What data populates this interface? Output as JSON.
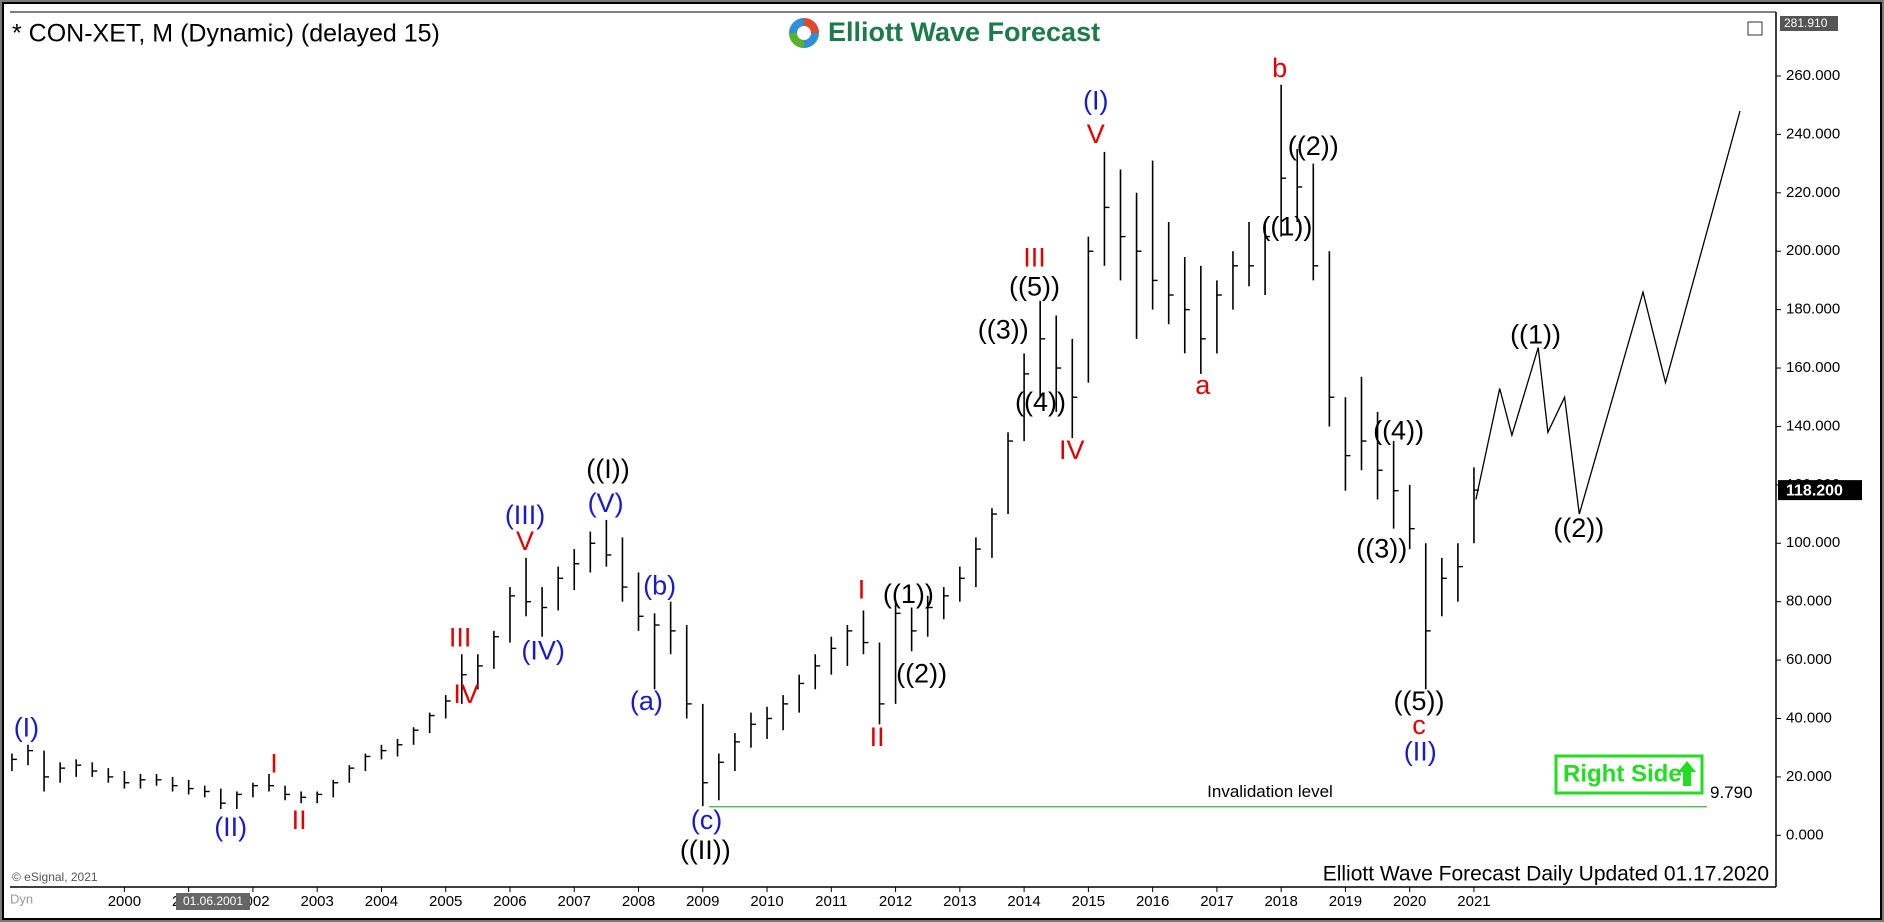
{
  "chart_data": {
    "type": "ohlc",
    "title": "* CON-XET, M (Dynamic) (delayed 15)",
    "logo": "Elliott Wave Forecast",
    "footer": "Elliott Wave Forecast Daily Updated 01.17.2020",
    "copyright": "© eSignal, 2021",
    "corner_label": "Dyn",
    "cursor_label": "01.06.2001",
    "badge": "Right Side",
    "xlim": [
      1998.22,
      2025.7
    ],
    "xticks": [
      2000,
      2001,
      2002,
      2003,
      2004,
      2005,
      2006,
      2007,
      2008,
      2009,
      2010,
      2011,
      2012,
      2013,
      2014,
      2015,
      2016,
      2017,
      2018,
      2019,
      2020,
      2021
    ],
    "ylim": [
      -17.7,
      {
        "value": 281.91,
        "label": "281.910"
      }
    ],
    "yticks": [
      {
        "value": 0,
        "label": "0.000"
      },
      {
        "value": 20,
        "label": "20.000"
      },
      {
        "value": 40,
        "label": "40.000"
      },
      {
        "value": 60,
        "label": "60.000"
      },
      {
        "value": 80,
        "label": "80.000"
      },
      {
        "value": 100,
        "label": "100.000"
      },
      {
        "value": 120,
        "label": "120.000"
      },
      {
        "value": 140,
        "label": "140.000"
      },
      {
        "value": 160,
        "label": "160.000"
      },
      {
        "value": 180,
        "label": "180.000"
      },
      {
        "value": 200,
        "label": "200.000"
      },
      {
        "value": 220,
        "label": "220.000"
      },
      {
        "value": 240,
        "label": "240.000"
      },
      {
        "value": 260,
        "label": "260.000"
      }
    ],
    "bar_color": "#000000",
    "bars": {
      "x": [
        1998.25,
        1998.5,
        1998.75,
        1999.0,
        1999.25,
        1999.5,
        1999.75,
        2000.0,
        2000.25,
        2000.5,
        2000.75,
        2001.0,
        2001.25,
        2001.5,
        2001.75,
        2002.0,
        2002.25,
        2002.5,
        2002.75,
        2003.0,
        2003.25,
        2003.5,
        2003.75,
        2004.0,
        2004.25,
        2004.5,
        2004.75,
        2005.0,
        2005.25,
        2005.5,
        2005.75,
        2006.0,
        2006.25,
        2006.5,
        2006.75,
        2007.0,
        2007.25,
        2007.5,
        2007.75,
        2008.0,
        2008.25,
        2008.5,
        2008.75,
        2009.0,
        2009.25,
        2009.5,
        2009.75,
        2010.0,
        2010.25,
        2010.5,
        2010.75,
        2011.0,
        2011.25,
        2011.5,
        2011.75,
        2012.0,
        2012.25,
        2012.5,
        2012.75,
        2013.0,
        2013.25,
        2013.5,
        2013.75,
        2014.0,
        2014.25,
        2014.5,
        2014.75,
        2015.0,
        2015.25,
        2015.5,
        2015.75,
        2016.0,
        2016.25,
        2016.5,
        2016.75,
        2017.0,
        2017.25,
        2017.5,
        2017.75,
        2018.0,
        2018.25,
        2018.5,
        2018.75,
        2019.0,
        2019.25,
        2019.5,
        2019.75,
        2020.0,
        2020.25,
        2020.5,
        2020.75,
        2021.0
      ],
      "high": [
        28,
        31,
        29,
        25,
        26,
        25,
        23,
        22,
        21,
        21,
        20,
        19,
        17,
        16,
        15,
        18,
        21,
        17,
        15,
        15,
        19,
        24,
        28,
        31,
        33,
        37,
        42,
        48,
        62,
        62,
        70,
        85,
        95,
        85,
        92,
        98,
        104,
        108,
        102,
        90,
        76,
        80,
        72,
        45,
        28,
        35,
        42,
        44,
        48,
        55,
        62,
        68,
        72,
        77,
        66,
        80,
        78,
        82,
        85,
        92,
        102,
        112,
        138,
        165,
        183,
        178,
        170,
        205,
        234,
        228,
        220,
        231,
        210,
        198,
        195,
        190,
        200,
        210,
        210,
        257,
        235,
        230,
        200,
        150,
        157,
        145,
        135,
        120,
        100,
        95,
        100,
        126
      ],
      "low": [
        22,
        24,
        15,
        18,
        20,
        20,
        18,
        16,
        16,
        17,
        15,
        14,
        13,
        9,
        9,
        13,
        15,
        12,
        11,
        11,
        13,
        18,
        22,
        26,
        27,
        31,
        35,
        40,
        45,
        50,
        57,
        66,
        75,
        68,
        77,
        84,
        90,
        92,
        80,
        70,
        50,
        62,
        40,
        10,
        12,
        22,
        30,
        33,
        36,
        42,
        50,
        55,
        58,
        62,
        38,
        45,
        63,
        68,
        74,
        80,
        85,
        95,
        110,
        135,
        150,
        145,
        136,
        155,
        195,
        190,
        170,
        180,
        175,
        165,
        158,
        165,
        180,
        188,
        185,
        205,
        210,
        190,
        140,
        118,
        125,
        115,
        105,
        98,
        50,
        75,
        80,
        100
      ],
      "close": [
        26,
        29,
        20,
        23,
        24,
        22,
        20,
        18,
        19,
        19,
        17,
        16,
        15,
        11,
        14,
        17,
        17,
        14,
        13,
        14,
        18,
        23,
        27,
        29,
        31,
        36,
        41,
        46,
        55,
        58,
        68,
        82,
        80,
        78,
        88,
        93,
        100,
        96,
        85,
        75,
        72,
        70,
        45,
        18,
        25,
        32,
        38,
        40,
        45,
        52,
        58,
        64,
        70,
        66,
        45,
        76,
        70,
        78,
        82,
        88,
        98,
        110,
        135,
        158,
        170,
        160,
        150,
        200,
        215,
        205,
        200,
        190,
        185,
        180,
        170,
        185,
        195,
        195,
        205,
        225,
        222,
        195,
        150,
        130,
        135,
        125,
        118,
        105,
        70,
        88,
        92,
        118.2
      ]
    },
    "last_price": {
      "value": 118.2,
      "label": "118.200"
    },
    "projection": {
      "color": "#000000",
      "x": [
        2021.03,
        2021.4,
        2021.59,
        2022.0,
        2022.15,
        2022.41,
        2022.64,
        2023.63,
        2023.98,
        2025.14
      ],
      "values": [
        115,
        153,
        137,
        167,
        138,
        150,
        110,
        186,
        155,
        248
      ]
    },
    "invalidation": {
      "label": "Invalidation level",
      "value": 9.79,
      "value_label": "9.790",
      "color": "#3cb043"
    },
    "annotations": [
      {
        "text": "(I)",
        "color": "#1a1acc"
      },
      {
        "text": "(II)",
        "color": "#1a1acc"
      },
      {
        "text": "I",
        "color": "#e00000"
      },
      {
        "text": "II",
        "color": "#e00000"
      },
      {
        "text": "III",
        "color": "#e00000"
      },
      {
        "text": "IV",
        "color": "#e00000"
      },
      {
        "text": "(III)",
        "color": "#1a1acc"
      },
      {
        "text": "V",
        "color": "#e00000"
      },
      {
        "text": "(IV)",
        "color": "#1a1acc"
      },
      {
        "text": "((I))",
        "color": "#000000"
      },
      {
        "text": "(V)",
        "color": "#1a1acc"
      },
      {
        "text": "(b)",
        "color": "#1a1acc"
      },
      {
        "text": "(a)",
        "color": "#1a1acc"
      },
      {
        "text": "(c)",
        "color": "#1a1acc"
      },
      {
        "text": "((II))",
        "color": "#000000"
      },
      {
        "text": "I",
        "color": "#e00000"
      },
      {
        "text": "II",
        "color": "#e00000"
      },
      {
        "text": "((1))",
        "color": "#000000"
      },
      {
        "text": "((2))",
        "color": "#000000"
      },
      {
        "text": "((3))",
        "color": "#000000"
      },
      {
        "text": "((5))",
        "color": "#000000"
      },
      {
        "text": "III",
        "color": "#e00000"
      },
      {
        "text": "((4))",
        "color": "#000000"
      },
      {
        "text": "IV",
        "color": "#e00000"
      },
      {
        "text": "(I)",
        "color": "#1a1acc"
      },
      {
        "text": "V",
        "color": "#e00000"
      },
      {
        "text": "b",
        "color": "#e00000"
      },
      {
        "text": "((2))",
        "color": "#000000"
      },
      {
        "text": "((1))",
        "color": "#000000"
      },
      {
        "text": "a",
        "color": "#e00000"
      },
      {
        "text": "((4))",
        "color": "#000000"
      },
      {
        "text": "((3))",
        "color": "#000000"
      },
      {
        "text": "((5))",
        "color": "#000000"
      },
      {
        "text": "c",
        "color": "#e00000"
      },
      {
        "text": "(II)",
        "color": "#1a1acc"
      },
      {
        "text": "((1))",
        "color": "#000000"
      },
      {
        "text": "((2))",
        "color": "#000000"
      }
    ]
  }
}
